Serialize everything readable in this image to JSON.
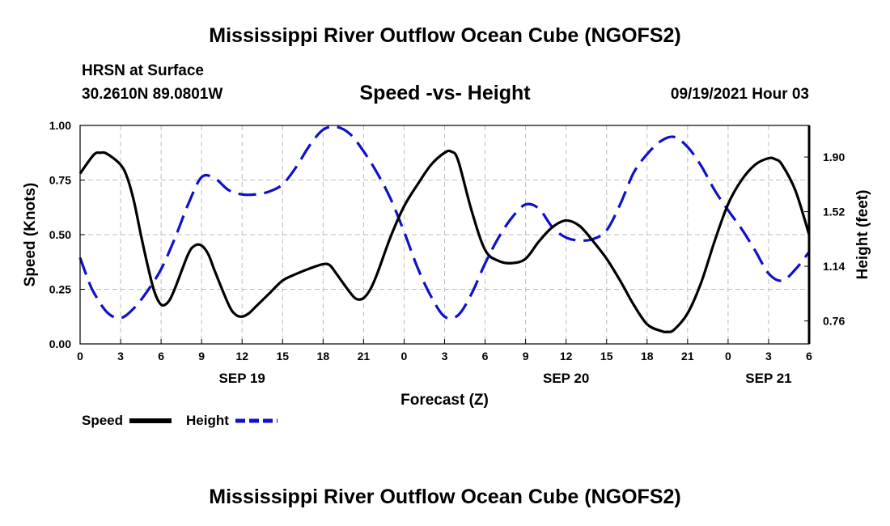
{
  "header": {
    "title_top": "Mississippi River Outflow Ocean Cube (NGOFS2)",
    "title_bottom": "Mississippi River Outflow Ocean Cube (NGOFS2)",
    "station": "HRSN at Surface",
    "location": "30.2610N  89.0801W",
    "subtitle": "Speed -vs- Height",
    "datetime": "09/19/2021 Hour 03"
  },
  "legend": {
    "speed_label": "Speed",
    "height_label": "Height"
  },
  "colors": {
    "speed": "#000000",
    "height": "#1010c8",
    "grid": "#bdbdbd"
  },
  "chart_data": {
    "type": "line",
    "title": "Speed -vs- Height",
    "xlabel": "Forecast (Z)",
    "ylabel_left": "Speed (Knots)",
    "ylabel_right": "Height (feet)",
    "x_unit": "hours since 09/19 00Z",
    "xlim": [
      0,
      54
    ],
    "ylim_left": [
      0,
      1.0
    ],
    "ylim_right": [
      0.6,
      2.12
    ],
    "grid": true,
    "x_ticks": [
      {
        "x": 0,
        "label": "0"
      },
      {
        "x": 3,
        "label": "3"
      },
      {
        "x": 6,
        "label": "6"
      },
      {
        "x": 9,
        "label": "9"
      },
      {
        "x": 12,
        "label": "12"
      },
      {
        "x": 15,
        "label": "15"
      },
      {
        "x": 18,
        "label": "18"
      },
      {
        "x": 21,
        "label": "21"
      },
      {
        "x": 24,
        "label": "0"
      },
      {
        "x": 27,
        "label": "3"
      },
      {
        "x": 30,
        "label": "6"
      },
      {
        "x": 33,
        "label": "9"
      },
      {
        "x": 36,
        "label": "12"
      },
      {
        "x": 39,
        "label": "15"
      },
      {
        "x": 42,
        "label": "18"
      },
      {
        "x": 45,
        "label": "21"
      },
      {
        "x": 48,
        "label": "0"
      },
      {
        "x": 51,
        "label": "3"
      },
      {
        "x": 54,
        "label": "6"
      }
    ],
    "date_labels": [
      {
        "x": 12,
        "label": "SEP 19"
      },
      {
        "x": 36,
        "label": "SEP 20"
      },
      {
        "x": 51,
        "label": "SEP 21"
      }
    ],
    "y_ticks_left": [
      "0.00",
      "0.25",
      "0.50",
      "0.75",
      "1.00"
    ],
    "y_tick_values_left": [
      0,
      0.25,
      0.5,
      0.75,
      1.0
    ],
    "y_ticks_right": [
      "0.76",
      "1.14",
      "1.52",
      "1.90"
    ],
    "y_tick_values_right": [
      0.76,
      1.14,
      1.52,
      1.9
    ],
    "series": [
      {
        "name": "Speed",
        "axis": "left",
        "style": "solid",
        "x": [
          0,
          1,
          1.5,
          2,
          3,
          3.5,
          4,
          4.5,
          5,
          5.5,
          6,
          6.5,
          7,
          8,
          8.5,
          9,
          9.5,
          10,
          11,
          11.5,
          12,
          12.5,
          13,
          14,
          15,
          16,
          17,
          18,
          18.5,
          19,
          20,
          20.5,
          21,
          21.5,
          22,
          23,
          24,
          25,
          26,
          27,
          27.5,
          28,
          29,
          30,
          31,
          32,
          33,
          34,
          35,
          36,
          37,
          38,
          39,
          40,
          41,
          42,
          43,
          43.5,
          44,
          45,
          46,
          47,
          48,
          49,
          50,
          51,
          51.5,
          52,
          53,
          54
        ],
        "values": [
          0.78,
          0.865,
          0.875,
          0.87,
          0.82,
          0.76,
          0.65,
          0.5,
          0.36,
          0.24,
          0.18,
          0.19,
          0.25,
          0.41,
          0.45,
          0.45,
          0.41,
          0.33,
          0.18,
          0.135,
          0.125,
          0.14,
          0.17,
          0.23,
          0.29,
          0.32,
          0.345,
          0.365,
          0.36,
          0.32,
          0.235,
          0.205,
          0.21,
          0.25,
          0.32,
          0.49,
          0.63,
          0.73,
          0.82,
          0.875,
          0.88,
          0.84,
          0.61,
          0.43,
          0.38,
          0.37,
          0.39,
          0.47,
          0.535,
          0.565,
          0.54,
          0.47,
          0.39,
          0.29,
          0.18,
          0.09,
          0.06,
          0.055,
          0.065,
          0.14,
          0.28,
          0.47,
          0.64,
          0.75,
          0.82,
          0.85,
          0.845,
          0.82,
          0.7,
          0.5
        ]
      },
      {
        "name": "Height",
        "axis": "right",
        "style": "dashed",
        "x": [
          0,
          0.5,
          1,
          2,
          3,
          4,
          5,
          6,
          7,
          8,
          9,
          10,
          11,
          12,
          13,
          14,
          15,
          16,
          17,
          18,
          19,
          20,
          21,
          22,
          23,
          24,
          25,
          26,
          27,
          28,
          29,
          30,
          31,
          32,
          33,
          34,
          35,
          36,
          37,
          38,
          39,
          40,
          41,
          42,
          43,
          44,
          45,
          46,
          47,
          48,
          49,
          50,
          51,
          52,
          53,
          54
        ],
        "values": [
          1.2,
          1.07,
          0.96,
          0.82,
          0.78,
          0.85,
          0.97,
          1.12,
          1.33,
          1.57,
          1.76,
          1.75,
          1.67,
          1.64,
          1.64,
          1.66,
          1.71,
          1.83,
          1.98,
          2.09,
          2.11,
          2.06,
          1.94,
          1.79,
          1.61,
          1.38,
          1.13,
          0.93,
          0.79,
          0.8,
          0.95,
          1.16,
          1.34,
          1.48,
          1.57,
          1.54,
          1.41,
          1.34,
          1.32,
          1.33,
          1.39,
          1.57,
          1.79,
          1.92,
          2.01,
          2.04,
          1.97,
          1.84,
          1.67,
          1.53,
          1.4,
          1.25,
          1.09,
          1.04,
          1.12,
          1.24
        ]
      }
    ]
  }
}
